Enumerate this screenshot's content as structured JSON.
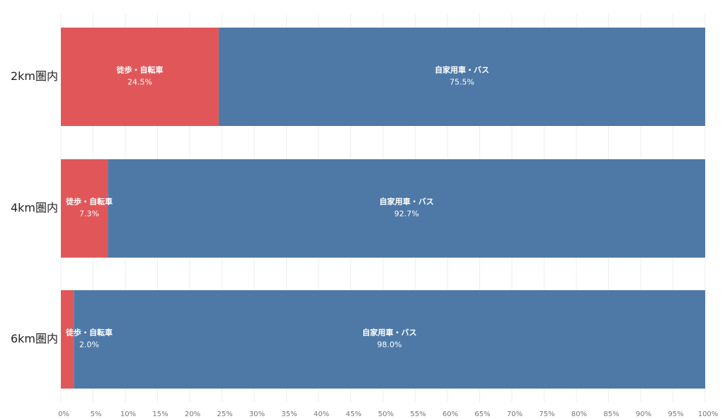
{
  "chart_data": {
    "type": "stacked_barh",
    "categories": [
      "2km圏内",
      "4km圏内",
      "6km圏内"
    ],
    "series": [
      {
        "name": "徒歩・自転車",
        "color": "#e15759",
        "values": [
          24.5,
          7.3,
          2.0
        ],
        "value_labels": [
          "24.5%",
          "7.3%",
          "2.0%"
        ]
      },
      {
        "name": "自家用車・バス",
        "color": "#4e79a7",
        "values": [
          75.5,
          92.7,
          98.0
        ],
        "value_labels": [
          "75.5%",
          "92.7%",
          "98.0%"
        ]
      }
    ],
    "xlim": [
      0,
      100
    ],
    "xticks": [
      {
        "value": 0,
        "label": "0%"
      },
      {
        "value": 5,
        "label": "5%"
      },
      {
        "value": 10,
        "label": "10%"
      },
      {
        "value": 15,
        "label": "15%"
      },
      {
        "value": 20,
        "label": "20%"
      },
      {
        "value": 25,
        "label": "25%"
      },
      {
        "value": 30,
        "label": "30%"
      },
      {
        "value": 35,
        "label": "35%"
      },
      {
        "value": 40,
        "label": "40%"
      },
      {
        "value": 45,
        "label": "45%"
      },
      {
        "value": 50,
        "label": "50%"
      },
      {
        "value": 55,
        "label": "55%"
      },
      {
        "value": 60,
        "label": "60%"
      },
      {
        "value": 65,
        "label": "65%"
      },
      {
        "value": 70,
        "label": "70%"
      },
      {
        "value": 75,
        "label": "75%"
      },
      {
        "value": 80,
        "label": "80%"
      },
      {
        "value": 85,
        "label": "85%"
      },
      {
        "value": 90,
        "label": "90%"
      },
      {
        "value": 95,
        "label": "95%"
      },
      {
        "value": 100,
        "label": "100%"
      }
    ],
    "grid": true
  }
}
